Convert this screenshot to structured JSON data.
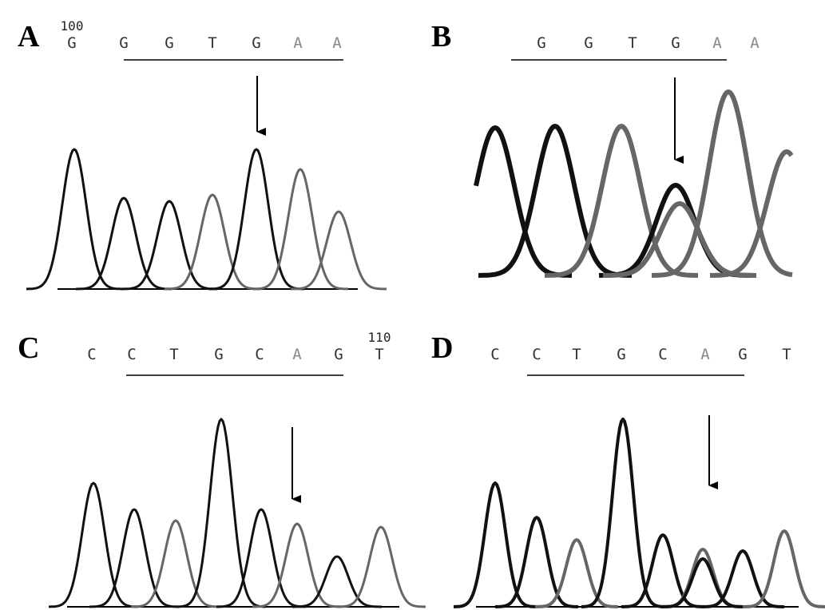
{
  "panels": [
    {
      "label": "A",
      "position": "100",
      "bases": [
        "G",
        "G",
        "G",
        "T",
        "G",
        "A",
        "A"
      ]
    },
    {
      "label": "B",
      "bases": [
        "G",
        "G",
        "T",
        "G",
        "A",
        "A"
      ]
    },
    {
      "label": "C",
      "position": "110",
      "bases": [
        "C",
        "C",
        "T",
        "G",
        "C",
        "A",
        "G",
        "T"
      ]
    },
    {
      "label": "D",
      "bases": [
        "C",
        "C",
        "T",
        "G",
        "C",
        "A",
        "G",
        "T"
      ]
    }
  ]
}
